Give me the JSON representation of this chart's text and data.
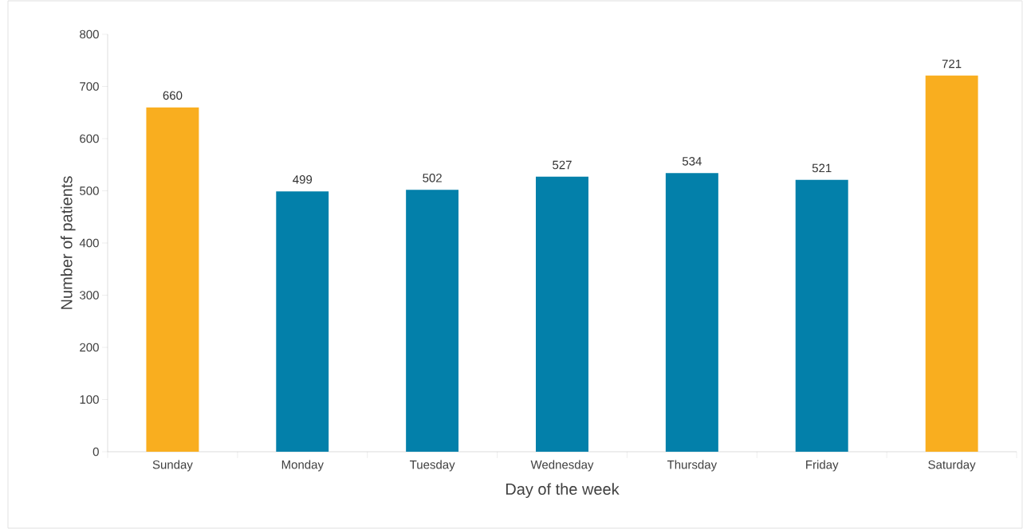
{
  "chart_data": {
    "type": "bar",
    "xlabel": "Day of the week",
    "ylabel": "Number of patients",
    "categories": [
      "Sunday",
      "Monday",
      "Tuesday",
      "Wednesday",
      "Thursday",
      "Friday",
      "Saturday"
    ],
    "values": [
      660,
      499,
      502,
      527,
      534,
      521,
      721
    ],
    "colors": [
      "#f9ae1f",
      "#0380aa",
      "#0380aa",
      "#0380aa",
      "#0380aa",
      "#0380aa",
      "#f9ae1f"
    ],
    "ylim": [
      0,
      800
    ],
    "yticks": [
      0,
      100,
      200,
      300,
      400,
      500,
      600,
      700,
      800
    ],
    "data_labels": true
  }
}
